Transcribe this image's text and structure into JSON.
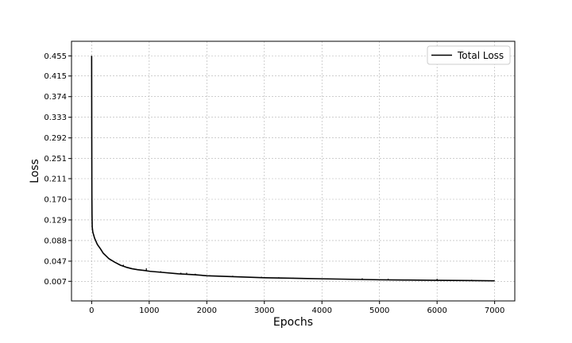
{
  "chart_data": {
    "type": "line",
    "xlabel": "Epochs",
    "ylabel": "Loss",
    "xlim": [
      -350,
      7350
    ],
    "ylim": [
      -0.032,
      0.484
    ],
    "x_ticks": [
      0,
      1000,
      2000,
      3000,
      4000,
      5000,
      6000,
      7000
    ],
    "y_ticks": [
      0.007,
      0.047,
      0.088,
      0.129,
      0.17,
      0.211,
      0.251,
      0.292,
      0.333,
      0.374,
      0.415,
      0.455
    ],
    "y_tick_labels": [
      "0.007",
      "0.047",
      "0.088",
      "0.129",
      "0.170",
      "0.211",
      "0.251",
      "0.292",
      "0.333",
      "0.374",
      "0.415",
      "0.455"
    ],
    "grid": true,
    "legend_position": "top-right",
    "series": [
      {
        "name": "Total Loss",
        "color": "#000000",
        "points": [
          [
            0,
            0.455
          ],
          [
            2,
            0.3
          ],
          [
            4,
            0.18
          ],
          [
            6,
            0.14
          ],
          [
            10,
            0.115
          ],
          [
            20,
            0.105
          ],
          [
            50,
            0.093
          ],
          [
            100,
            0.08
          ],
          [
            150,
            0.072
          ],
          [
            200,
            0.063
          ],
          [
            300,
            0.052
          ],
          [
            400,
            0.045
          ],
          [
            500,
            0.039
          ],
          [
            600,
            0.035
          ],
          [
            700,
            0.032
          ],
          [
            800,
            0.03
          ],
          [
            950,
            0.028
          ],
          [
            1000,
            0.027
          ],
          [
            1200,
            0.025
          ],
          [
            1500,
            0.022
          ],
          [
            1800,
            0.02
          ],
          [
            2000,
            0.018
          ],
          [
            2500,
            0.016
          ],
          [
            3000,
            0.014
          ],
          [
            3500,
            0.013
          ],
          [
            4000,
            0.012
          ],
          [
            4500,
            0.011
          ],
          [
            5000,
            0.01
          ],
          [
            5500,
            0.0095
          ],
          [
            6000,
            0.009
          ],
          [
            6500,
            0.0085
          ],
          [
            7000,
            0.008
          ]
        ],
        "spikes": [
          [
            400,
            0.045
          ],
          [
            550,
            0.04
          ],
          [
            950,
            0.033
          ],
          [
            1200,
            0.027
          ],
          [
            1550,
            0.024
          ],
          [
            1650,
            0.024
          ],
          [
            1800,
            0.022
          ],
          [
            2050,
            0.019
          ],
          [
            2450,
            0.018
          ],
          [
            2750,
            0.016
          ],
          [
            2950,
            0.016
          ],
          [
            3250,
            0.015
          ],
          [
            3500,
            0.014
          ],
          [
            4100,
            0.013
          ],
          [
            4700,
            0.013
          ],
          [
            5150,
            0.012
          ],
          [
            6000,
            0.012
          ],
          [
            6600,
            0.01
          ]
        ]
      }
    ]
  }
}
